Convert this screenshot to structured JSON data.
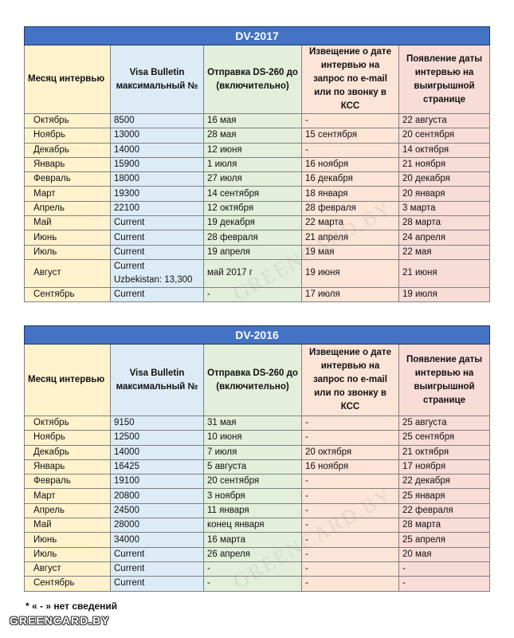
{
  "tables": [
    {
      "title": "DV-2017",
      "header": [
        "Месяц интервью",
        "Visa Bulletin максимальный №",
        "Отправка DS-260 до (включительно)",
        "Извещение о дате интервью на запрос по e-mail или по звонку в КСС",
        "Появление даты интервью на выигрышной странице"
      ],
      "rows": [
        [
          "Октябрь",
          "8500",
          "16 мая",
          "-",
          "22 августа"
        ],
        [
          "Ноябрь",
          "13000",
          "28 мая",
          "15 сентября",
          "20 сентября"
        ],
        [
          "Декабрь",
          "14000",
          "12 июня",
          "-",
          "14 октября"
        ],
        [
          "Январь",
          "15900",
          "1 июля",
          "16 ноября",
          "21 ноября"
        ],
        [
          "Февраль",
          "18000",
          "27 июля",
          "16 декабря",
          "20 декабря"
        ],
        [
          "Март",
          "19300",
          "14 сентября",
          "18 января",
          "20 января"
        ],
        [
          "Апрель",
          "22100",
          "12 октября",
          "28 февраля",
          "3 марта"
        ],
        [
          "Май",
          "Current",
          "19 декабря",
          "22 марта",
          "28 марта"
        ],
        [
          "Июнь",
          "Current",
          "28 февраля",
          "21 апреля",
          "24 апреля"
        ],
        [
          "Июль",
          "Current",
          "19 апреля",
          "19 мая",
          "22 мая"
        ],
        [
          "Август",
          "Current\nUzbekistan: 13,300",
          "май 2017 г",
          "19 июня",
          "21 июня"
        ],
        [
          "Сентябрь",
          "Current",
          "-",
          "17 июля",
          "19 июля"
        ]
      ]
    },
    {
      "title": "DV-2016",
      "header": [
        "Месяц интервью",
        "Visa Bulletin максимальный №",
        "Отправка DS-260 до (включительно)",
        "Извещение о дате интервью на запрос по e-mail или по звонку в КСС",
        "Появление даты интервью на выигрышной странице"
      ],
      "rows": [
        [
          "Октябрь",
          "9150",
          "31 мая",
          "-",
          "25 августа"
        ],
        [
          "Ноябрь",
          "12500",
          "10 июня",
          "-",
          "25 сентября"
        ],
        [
          "Декабрь",
          "14000",
          "7 июля",
          "20 октября",
          "21 октября"
        ],
        [
          "Январь",
          "16425",
          "5 августа",
          "16 ноября",
          "17 ноября"
        ],
        [
          "Февраль",
          "19100",
          "20 сентября",
          "-",
          "22 декабря"
        ],
        [
          "Март",
          "20800",
          "3 ноября",
          "-",
          "25 января"
        ],
        [
          "Апрель",
          "24500",
          "11 января",
          "-",
          "22 февраля"
        ],
        [
          "Май",
          "28000",
          "конец января",
          "-",
          "28 марта"
        ],
        [
          "Июнь",
          "34000",
          "16 марта",
          "-",
          "25 апреля"
        ],
        [
          "Июль",
          "Current",
          "26 апреля",
          "-",
          "20 мая"
        ],
        [
          "Август",
          "Current",
          "-",
          "-",
          "-"
        ],
        [
          "Сентябрь",
          "Current",
          "-",
          "-",
          "-"
        ]
      ]
    }
  ],
  "footnote": "* « - » нет сведений",
  "logo": "GREENCARD.BY",
  "watermark": "GREENCARD.BY"
}
